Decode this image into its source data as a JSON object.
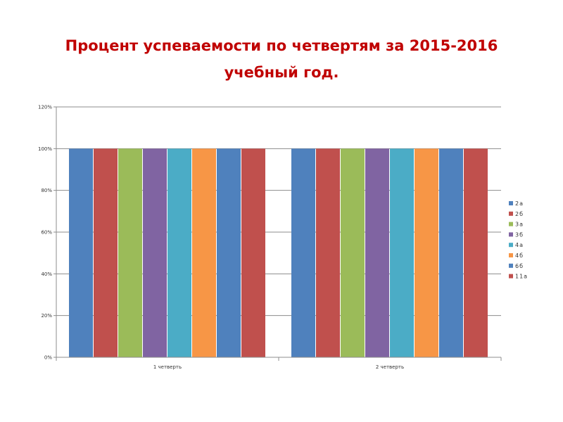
{
  "title": {
    "line1": "Процент успеваемости по четвертям за 2015-2016",
    "line2": "учебный год."
  },
  "chart_data": {
    "type": "bar",
    "categories": [
      "1 четверть",
      "2 четверть"
    ],
    "series": [
      {
        "name": "2а",
        "color": "#4f81bd",
        "values": [
          1.0,
          1.0
        ]
      },
      {
        "name": "2б",
        "color": "#c0504d",
        "values": [
          1.0,
          1.0
        ]
      },
      {
        "name": "3а",
        "color": "#9bbb59",
        "values": [
          1.0,
          1.0
        ]
      },
      {
        "name": "3б",
        "color": "#8064a2",
        "values": [
          1.0,
          1.0
        ]
      },
      {
        "name": "4а",
        "color": "#4bacc6",
        "values": [
          1.0,
          1.0
        ]
      },
      {
        "name": "4б",
        "color": "#f79646",
        "values": [
          1.0,
          1.0
        ]
      },
      {
        "name": "6б",
        "color": "#4f81bd",
        "values": [
          1.0,
          1.0
        ]
      },
      {
        "name": "11а",
        "color": "#c0504d",
        "values": [
          1.0,
          1.0
        ]
      }
    ],
    "ylim": [
      0,
      1.2
    ],
    "yticks": [
      "0%",
      "20%",
      "40%",
      "60%",
      "80%",
      "100%",
      "120%"
    ],
    "grid": true,
    "legend": "right"
  }
}
